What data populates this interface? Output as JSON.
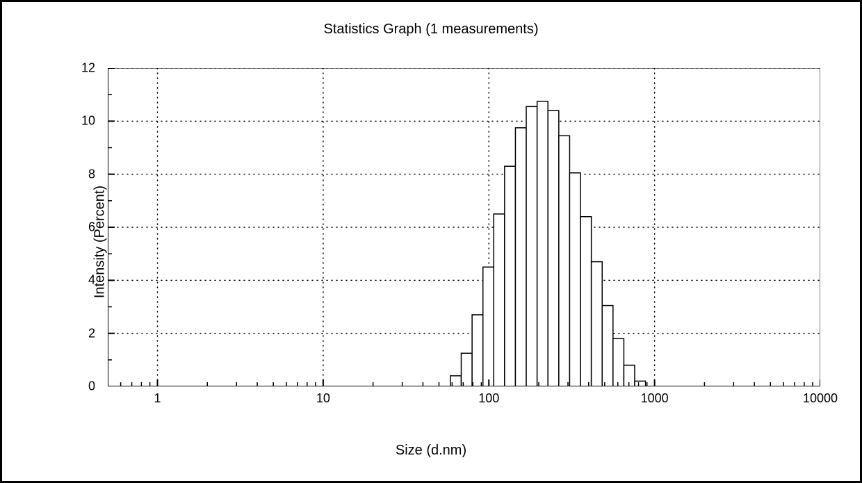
{
  "chart": {
    "type": "histogram",
    "title": "Statistics Graph (1 measurements)",
    "xlabel": "Size (d.nm)",
    "ylabel": "Intensity (Percent)",
    "title_fontsize": 20,
    "label_fontsize": 20,
    "tick_fontsize": 18,
    "x_scale": "log",
    "x_min_exp": -0.3,
    "x_max_exp": 4.0,
    "x_major_ticks": [
      1,
      10,
      100,
      1000,
      10000
    ],
    "x_major_tick_labels": [
      "1",
      "10",
      "100",
      "1000",
      "10000"
    ],
    "y_min": 0,
    "y_max": 12,
    "y_ticks": [
      0,
      2,
      4,
      6,
      8,
      10,
      12
    ],
    "background_color": "#ffffff",
    "axis_color": "#000000",
    "grid_color": "#000000",
    "grid_dash": "1,6",
    "bar_fill": "#ffffff",
    "bar_stroke": "#000000",
    "bar_stroke_width": 1.5,
    "tick_len_major": 10,
    "tick_len_minor": 6,
    "bins": [
      {
        "from": 58.6,
        "to": 68.1,
        "value": 0.4
      },
      {
        "from": 68.1,
        "to": 79.2,
        "value": 1.25
      },
      {
        "from": 79.2,
        "to": 92.1,
        "value": 2.7
      },
      {
        "from": 92.1,
        "to": 107.0,
        "value": 4.5
      },
      {
        "from": 107.0,
        "to": 124.4,
        "value": 6.5
      },
      {
        "from": 124.4,
        "to": 144.6,
        "value": 8.3
      },
      {
        "from": 144.6,
        "to": 168.1,
        "value": 9.75
      },
      {
        "from": 168.1,
        "to": 195.5,
        "value": 10.55
      },
      {
        "from": 195.5,
        "to": 227.2,
        "value": 10.75
      },
      {
        "from": 227.2,
        "to": 264.2,
        "value": 10.4
      },
      {
        "from": 264.2,
        "to": 307.2,
        "value": 9.45
      },
      {
        "from": 307.2,
        "to": 357.1,
        "value": 8.05
      },
      {
        "from": 357.1,
        "to": 415.2,
        "value": 6.4
      },
      {
        "from": 415.2,
        "to": 482.7,
        "value": 4.7
      },
      {
        "from": 482.7,
        "to": 561.2,
        "value": 3.05
      },
      {
        "from": 561.2,
        "to": 652.4,
        "value": 1.8
      },
      {
        "from": 652.4,
        "to": 758.5,
        "value": 0.8
      },
      {
        "from": 758.5,
        "to": 881.9,
        "value": 0.2
      }
    ]
  }
}
